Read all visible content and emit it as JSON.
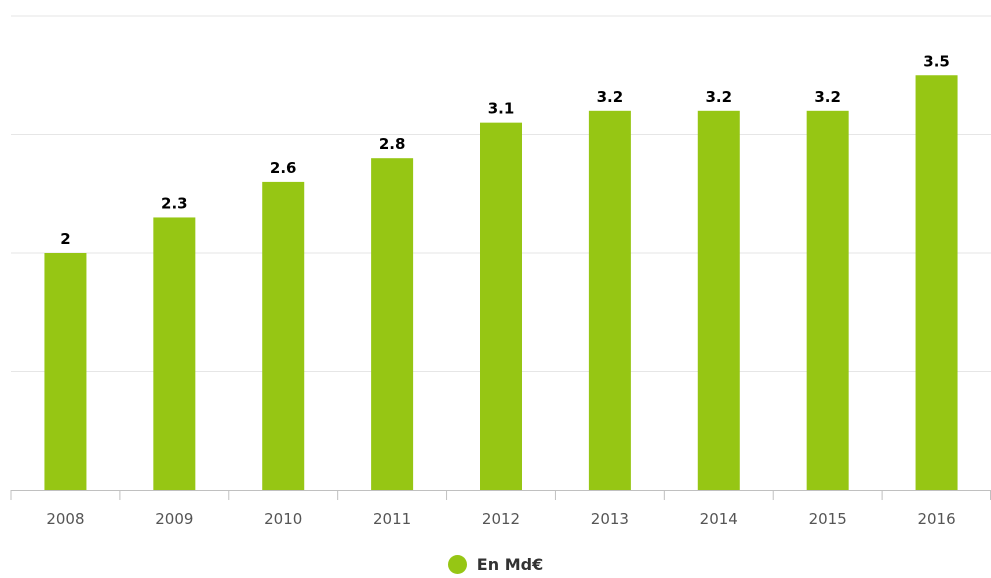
{
  "chart_data": {
    "type": "bar",
    "title": "",
    "xlabel": "",
    "ylabel": "",
    "categories": [
      "2008",
      "2009",
      "2010",
      "2011",
      "2012",
      "2013",
      "2014",
      "2015",
      "2016"
    ],
    "series": [
      {
        "name": "En Md€",
        "values": [
          2,
          2.3,
          2.6,
          2.8,
          3.1,
          3.2,
          3.2,
          3.2,
          3.5
        ],
        "labels": [
          "2",
          "2.3",
          "2.6",
          "2.8",
          "3.1",
          "3.2",
          "3.2",
          "3.2",
          "3.5"
        ]
      }
    ],
    "ylim": [
      0,
      4
    ],
    "grid": true,
    "legend": "bottom-center",
    "colors": {
      "bar": "#96c614",
      "grid": "#e6e6e6",
      "axis": "#c0c0c0",
      "tick_label": "#555555",
      "data_label": "#000000"
    }
  }
}
